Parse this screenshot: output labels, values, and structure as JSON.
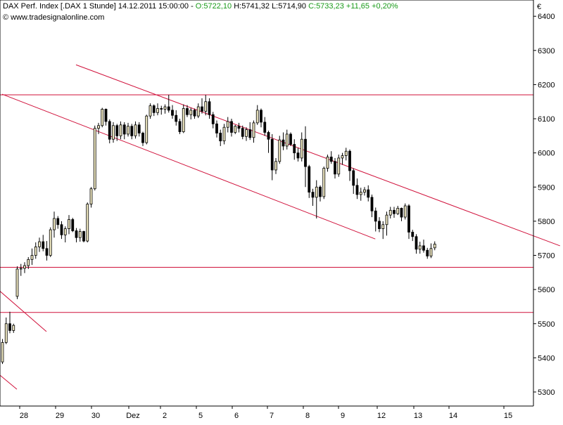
{
  "header": {
    "title": "DAX Perf. Index [.DAX  1 Stunde]",
    "datetime": "14.12.2011 15:00:00",
    "sep": "-",
    "open": "O:5722,10",
    "high": "H:5741,32",
    "low": "L:5714,90",
    "close": "C:5733,23",
    "change": "+11,65",
    "change_pct": "+0,20%",
    "source": "© www.tradesignalonline.com"
  },
  "colors": {
    "candle_body": "#f2ebc4",
    "candle_border": "#000000",
    "line": "#d0103a",
    "positive": "#1a9b1a",
    "axis": "#000000"
  },
  "chart_data": {
    "type": "candlestick",
    "title": "DAX Perf. Index [.DAX  1 Stunde]",
    "currency_label": "€",
    "ylim": [
      5260,
      6490
    ],
    "y_ticks": [
      5300,
      5400,
      5500,
      5600,
      5700,
      5800,
      5900,
      6000,
      6100,
      6200,
      6300,
      6400
    ],
    "x_ticks": [
      "28",
      "29",
      "30",
      "Dez",
      "2",
      "5",
      "6",
      "7",
      "8",
      "9",
      "12",
      "13",
      "14",
      "15"
    ],
    "grid": false,
    "horizontal_lines": [
      6170,
      5665,
      5533
    ],
    "trendlines": [
      {
        "from": [
          0,
          6172
        ],
        "to": [
          101,
          5748
        ]
      },
      {
        "from": [
          20,
          6258
        ],
        "to": [
          151,
          5728
        ]
      },
      {
        "from": [
          -1,
          5599
        ],
        "to": [
          12,
          5477
        ]
      },
      {
        "from": [
          -1,
          5353
        ],
        "to": [
          4,
          5308
        ]
      }
    ],
    "candles": [
      [
        5388,
        5455,
        5382,
        5445
      ],
      [
        5445,
        5518,
        5440,
        5500
      ],
      [
        5500,
        5535,
        5472,
        5480
      ],
      [
        5480,
        5500,
        5473,
        5495
      ],
      [
        5580,
        5668,
        5572,
        5660
      ],
      [
        5660,
        5675,
        5640,
        5662
      ],
      [
        5662,
        5680,
        5648,
        5670
      ],
      [
        5670,
        5695,
        5660,
        5688
      ],
      [
        5688,
        5720,
        5672,
        5700
      ],
      [
        5700,
        5738,
        5690,
        5725
      ],
      [
        5725,
        5752,
        5710,
        5740
      ],
      [
        5740,
        5760,
        5712,
        5720
      ],
      [
        5720,
        5742,
        5685,
        5700
      ],
      [
        5700,
        5782,
        5695,
        5775
      ],
      [
        5775,
        5828,
        5752,
        5808
      ],
      [
        5808,
        5815,
        5778,
        5790
      ],
      [
        5790,
        5800,
        5748,
        5760
      ],
      [
        5760,
        5785,
        5738,
        5778
      ],
      [
        5778,
        5818,
        5762,
        5805
      ],
      [
        5805,
        5810,
        5768,
        5772
      ],
      [
        5772,
        5780,
        5738,
        5752
      ],
      [
        5752,
        5778,
        5740,
        5770
      ],
      [
        5770,
        5772,
        5738,
        5742
      ],
      [
        5742,
        5855,
        5738,
        5850
      ],
      [
        5850,
        5900,
        5840,
        5895
      ],
      [
        5895,
        6080,
        5890,
        6072
      ],
      [
        6072,
        6088,
        6055,
        6080
      ],
      [
        6080,
        6132,
        6075,
        6128
      ],
      [
        6128,
        6130,
        6080,
        6092
      ],
      [
        6092,
        6098,
        6028,
        6040
      ],
      [
        6040,
        6090,
        6030,
        6080
      ],
      [
        6080,
        6085,
        6035,
        6050
      ],
      [
        6050,
        6092,
        6040,
        6082
      ],
      [
        6082,
        6090,
        6040,
        6055
      ],
      [
        6055,
        6088,
        6048,
        6078
      ],
      [
        6078,
        6085,
        6040,
        6050
      ],
      [
        6050,
        6092,
        6042,
        6082
      ],
      [
        6082,
        6090,
        6048,
        6058
      ],
      [
        6058,
        6062,
        6020,
        6030
      ],
      [
        6030,
        6112,
        6025,
        6108
      ],
      [
        6108,
        6145,
        6100,
        6138
      ],
      [
        6138,
        6142,
        6108,
        6118
      ],
      [
        6118,
        6145,
        6110,
        6130
      ],
      [
        6130,
        6138,
        6112,
        6128
      ],
      [
        6128,
        6142,
        6115,
        6135
      ],
      [
        6135,
        6170,
        6118,
        6125
      ],
      [
        6125,
        6140,
        6100,
        6110
      ],
      [
        6110,
        6125,
        6080,
        6092
      ],
      [
        6092,
        6100,
        6055,
        6062
      ],
      [
        6062,
        6142,
        6058,
        6130
      ],
      [
        6130,
        6140,
        6105,
        6112
      ],
      [
        6112,
        6132,
        6098,
        6125
      ],
      [
        6125,
        6130,
        6100,
        6108
      ],
      [
        6108,
        6145,
        6102,
        6135
      ],
      [
        6135,
        6160,
        6115,
        6122
      ],
      [
        6122,
        6170,
        6110,
        6150
      ],
      [
        6150,
        6160,
        6100,
        6112
      ],
      [
        6112,
        6120,
        6072,
        6085
      ],
      [
        6085,
        6095,
        6045,
        6058
      ],
      [
        6058,
        6068,
        6020,
        6035
      ],
      [
        6035,
        6085,
        6025,
        6075
      ],
      [
        6075,
        6105,
        6060,
        6092
      ],
      [
        6092,
        6100,
        6048,
        6060
      ],
      [
        6060,
        6082,
        6055,
        6078
      ],
      [
        6078,
        6088,
        6060,
        6072
      ],
      [
        6072,
        6080,
        6040,
        6048
      ],
      [
        6048,
        6075,
        6035,
        6068
      ],
      [
        6068,
        6090,
        6038,
        6045
      ],
      [
        6045,
        6095,
        6030,
        6088
      ],
      [
        6088,
        6140,
        6082,
        6125
      ],
      [
        6125,
        6130,
        6075,
        6090
      ],
      [
        6090,
        6105,
        6050,
        6060
      ],
      [
        6060,
        6065,
        6000,
        6040
      ],
      [
        6040,
        6055,
        5920,
        5950
      ],
      [
        5950,
        5985,
        5938,
        5975
      ],
      [
        5975,
        6050,
        5968,
        6038
      ],
      [
        6038,
        6060,
        6008,
        6020
      ],
      [
        6020,
        6068,
        6010,
        6055
      ],
      [
        6055,
        6060,
        6020,
        6025
      ],
      [
        6025,
        6040,
        5980,
        6000
      ],
      [
        6000,
        6015,
        5975,
        5985
      ],
      [
        5985,
        6060,
        5975,
        6040
      ],
      [
        6040,
        6078,
        5900,
        5960
      ],
      [
        5960,
        5965,
        5868,
        5885
      ],
      [
        5885,
        5895,
        5845,
        5870
      ],
      [
        5870,
        5920,
        5808,
        5900
      ],
      [
        5900,
        5905,
        5858,
        5872
      ],
      [
        5872,
        5960,
        5865,
        5955
      ],
      [
        5955,
        5995,
        5945,
        5988
      ],
      [
        5988,
        6005,
        5968,
        5975
      ],
      [
        5975,
        5985,
        5925,
        5938
      ],
      [
        5938,
        5995,
        5930,
        5985
      ],
      [
        5985,
        6000,
        5965,
        5992
      ],
      [
        5992,
        6015,
        5978,
        6005
      ],
      [
        6005,
        6010,
        5918,
        5948
      ],
      [
        5948,
        5955,
        5880,
        5905
      ],
      [
        5905,
        5925,
        5865,
        5878
      ],
      [
        5878,
        5898,
        5860,
        5885
      ],
      [
        5885,
        5900,
        5875,
        5892
      ],
      [
        5892,
        5905,
        5858,
        5870
      ],
      [
        5870,
        5878,
        5812,
        5830
      ],
      [
        5830,
        5840,
        5770,
        5800
      ],
      [
        5800,
        5812,
        5768,
        5778
      ],
      [
        5778,
        5800,
        5748,
        5790
      ],
      [
        5790,
        5828,
        5758,
        5818
      ],
      [
        5818,
        5842,
        5808,
        5832
      ],
      [
        5832,
        5842,
        5810,
        5822
      ],
      [
        5822,
        5845,
        5818,
        5838
      ],
      [
        5838,
        5840,
        5800,
        5812
      ],
      [
        5812,
        5852,
        5805,
        5845
      ],
      [
        5845,
        5850,
        5748,
        5768
      ],
      [
        5768,
        5775,
        5742,
        5755
      ],
      [
        5755,
        5762,
        5705,
        5718
      ],
      [
        5718,
        5740,
        5705,
        5728
      ],
      [
        5728,
        5746,
        5708,
        5715
      ],
      [
        5715,
        5722,
        5690,
        5698
      ],
      [
        5698,
        5735,
        5692,
        5720
      ],
      [
        5722,
        5741,
        5715,
        5733
      ]
    ]
  }
}
